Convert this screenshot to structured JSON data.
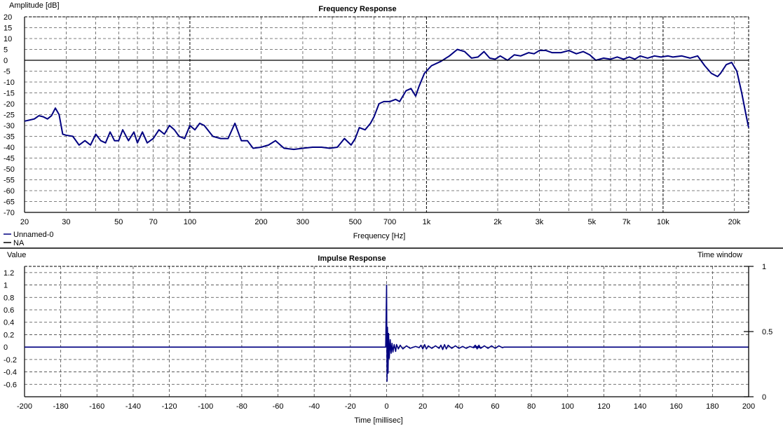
{
  "chart_data": [
    {
      "type": "line",
      "title": "Frequency Response",
      "xlabel": "Frequency [Hz]",
      "ylabel": "Amplitude [dB]",
      "xscale": "log",
      "xlim": [
        20,
        23000
      ],
      "ylim": [
        -70,
        20
      ],
      "grid": true,
      "x_ticks": [
        20,
        30,
        50,
        70,
        100,
        200,
        300,
        500,
        700,
        1000,
        2000,
        3000,
        5000,
        7000,
        10000,
        20000
      ],
      "x_tick_labels": [
        "20",
        "30",
        "50",
        "70",
        "100",
        "200",
        "300",
        "500",
        "700",
        "1k",
        "2k",
        "3k",
        "5k",
        "7k",
        "10k",
        "20k"
      ],
      "y_ticks": [
        20,
        15,
        10,
        5,
        0,
        -5,
        -10,
        -15,
        -20,
        -25,
        -30,
        -35,
        -40,
        -45,
        -50,
        -55,
        -60,
        -65,
        -70
      ],
      "legend": {
        "placement": "bottom-left",
        "entries": [
          {
            "label": "Unnamed-0",
            "color": "#000080"
          },
          {
            "label": "NA",
            "color": "#000000"
          }
        ]
      },
      "series": [
        {
          "name": "Unnamed-0",
          "color": "#000080",
          "points": [
            [
              20,
              -28
            ],
            [
              21,
              -27.5
            ],
            [
              22,
              -27
            ],
            [
              23,
              -25.5
            ],
            [
              24,
              -26
            ],
            [
              25,
              -27
            ],
            [
              26,
              -25.5
            ],
            [
              27,
              -22
            ],
            [
              28,
              -25
            ],
            [
              29,
              -34
            ],
            [
              30,
              -34.5
            ],
            [
              32,
              -35
            ],
            [
              34,
              -39
            ],
            [
              36,
              -37
            ],
            [
              38,
              -39
            ],
            [
              40,
              -34
            ],
            [
              42,
              -37
            ],
            [
              44,
              -38
            ],
            [
              46,
              -33
            ],
            [
              48,
              -37
            ],
            [
              50,
              -37
            ],
            [
              52,
              -32
            ],
            [
              55,
              -37
            ],
            [
              58,
              -33
            ],
            [
              60,
              -38
            ],
            [
              63,
              -33
            ],
            [
              66,
              -38
            ],
            [
              70,
              -36
            ],
            [
              74,
              -32
            ],
            [
              78,
              -34
            ],
            [
              82,
              -30
            ],
            [
              86,
              -32
            ],
            [
              90,
              -35
            ],
            [
              95,
              -36
            ],
            [
              100,
              -30
            ],
            [
              105,
              -32
            ],
            [
              110,
              -29
            ],
            [
              115,
              -30
            ],
            [
              125,
              -35
            ],
            [
              135,
              -36
            ],
            [
              145,
              -36
            ],
            [
              155,
              -29
            ],
            [
              165,
              -37
            ],
            [
              175,
              -37
            ],
            [
              185,
              -40.5
            ],
            [
              200,
              -40
            ],
            [
              215,
              -39
            ],
            [
              230,
              -37
            ],
            [
              250,
              -40.5
            ],
            [
              275,
              -41
            ],
            [
              300,
              -40.5
            ],
            [
              330,
              -40
            ],
            [
              360,
              -40
            ],
            [
              390,
              -40.5
            ],
            [
              420,
              -40
            ],
            [
              450,
              -36
            ],
            [
              480,
              -39
            ],
            [
              500,
              -36
            ],
            [
              520,
              -31
            ],
            [
              550,
              -32
            ],
            [
              580,
              -29
            ],
            [
              600,
              -26
            ],
            [
              630,
              -20
            ],
            [
              660,
              -19
            ],
            [
              700,
              -19
            ],
            [
              740,
              -18
            ],
            [
              770,
              -19
            ],
            [
              820,
              -14
            ],
            [
              860,
              -13
            ],
            [
              900,
              -16.5
            ],
            [
              930,
              -12
            ],
            [
              980,
              -6
            ],
            [
              1050,
              -2.5
            ],
            [
              1150,
              -0.5
            ],
            [
              1250,
              2
            ],
            [
              1350,
              5
            ],
            [
              1450,
              4
            ],
            [
              1550,
              1
            ],
            [
              1650,
              1.5
            ],
            [
              1750,
              4
            ],
            [
              1850,
              1
            ],
            [
              1950,
              0.5
            ],
            [
              2050,
              2
            ],
            [
              2200,
              0
            ],
            [
              2350,
              2.5
            ],
            [
              2500,
              2
            ],
            [
              2700,
              3.5
            ],
            [
              2850,
              3
            ],
            [
              3000,
              4.5
            ],
            [
              3200,
              4.5
            ],
            [
              3400,
              3.5
            ],
            [
              3700,
              3.5
            ],
            [
              4000,
              4.5
            ],
            [
              4300,
              3
            ],
            [
              4600,
              4
            ],
            [
              4900,
              2.5
            ],
            [
              5200,
              0
            ],
            [
              5600,
              1
            ],
            [
              6000,
              0.5
            ],
            [
              6400,
              1.5
            ],
            [
              6800,
              0.5
            ],
            [
              7200,
              1.5
            ],
            [
              7600,
              0.5
            ],
            [
              8000,
              2
            ],
            [
              8600,
              1
            ],
            [
              9200,
              2
            ],
            [
              9800,
              1.5
            ],
            [
              10500,
              2
            ],
            [
              11000,
              1.5
            ],
            [
              12000,
              2
            ],
            [
              13000,
              1
            ],
            [
              14000,
              2
            ],
            [
              15000,
              -2.5
            ],
            [
              16000,
              -6
            ],
            [
              17000,
              -7.5
            ],
            [
              17500,
              -6
            ],
            [
              18500,
              -2
            ],
            [
              19500,
              -1
            ],
            [
              20500,
              -5
            ],
            [
              21500,
              -15
            ],
            [
              22500,
              -26
            ],
            [
              23000,
              -31
            ]
          ]
        },
        {
          "name": "NA",
          "color": "#000000",
          "points": [
            [
              20,
              0
            ],
            [
              23000,
              0
            ]
          ]
        }
      ]
    },
    {
      "type": "line",
      "title": "Impulse Response",
      "xlabel": "Time [millisec]",
      "ylabel": "Value",
      "y2label": "Time window",
      "xlim": [
        -200,
        200
      ],
      "ylim": [
        -0.8,
        1.3
      ],
      "y2lim": [
        0,
        1
      ],
      "grid": true,
      "x_ticks": [
        -200,
        -180,
        -160,
        -140,
        -120,
        -100,
        -80,
        -60,
        -40,
        -20,
        0,
        20,
        40,
        60,
        80,
        100,
        120,
        140,
        160,
        180,
        200
      ],
      "y_ticks": [
        1.2,
        1,
        0.8,
        0.6,
        0.4,
        0.2,
        0,
        -0.2,
        -0.4,
        -0.6
      ],
      "y_tick_labels": [
        "1.2",
        "1",
        "0.8",
        "0.6",
        "0.4",
        "0.2",
        "0",
        "-0.2",
        "-0.4",
        "-0.6"
      ],
      "y2_ticks": [
        1,
        0.5,
        0
      ],
      "y2_tick_labels": [
        "1",
        "0.5",
        "0"
      ],
      "series": [
        {
          "name": "Unnamed-0",
          "color": "#000080",
          "points": [
            [
              -200,
              0
            ],
            [
              -0.5,
              0
            ],
            [
              0,
              1.0
            ],
            [
              0.25,
              -0.55
            ],
            [
              0.5,
              0.32
            ],
            [
              0.8,
              -0.42
            ],
            [
              1.1,
              0.22
            ],
            [
              1.5,
              -0.18
            ],
            [
              2,
              0.12
            ],
            [
              2.5,
              -0.1
            ],
            [
              3,
              0.06
            ],
            [
              3.5,
              -0.08
            ],
            [
              4.2,
              0.04
            ],
            [
              5,
              -0.07
            ],
            [
              5.5,
              0.04
            ],
            [
              6.5,
              -0.03
            ],
            [
              7.5,
              0.03
            ],
            [
              9,
              -0.03
            ],
            [
              11,
              0.02
            ],
            [
              13,
              -0.02
            ],
            [
              16,
              0.01
            ],
            [
              18,
              -0.01
            ],
            [
              19,
              0.03
            ],
            [
              20,
              -0.03
            ],
            [
              21,
              0.04
            ],
            [
              22,
              -0.03
            ],
            [
              23,
              0.02
            ],
            [
              25,
              -0.02
            ],
            [
              27,
              0.02
            ],
            [
              29,
              -0.02
            ],
            [
              30,
              0.03
            ],
            [
              31,
              -0.04
            ],
            [
              32,
              0.04
            ],
            [
              33,
              -0.03
            ],
            [
              34,
              0.03
            ],
            [
              36,
              -0.02
            ],
            [
              38,
              0.02
            ],
            [
              40,
              -0.02
            ],
            [
              42,
              0.01
            ],
            [
              44,
              -0.02
            ],
            [
              46,
              0.01
            ],
            [
              48,
              -0.01
            ],
            [
              50,
              0.01
            ],
            [
              52,
              -0.01
            ],
            [
              48,
              0
            ],
            [
              49,
              0.03
            ],
            [
              50,
              -0.03
            ],
            [
              51,
              0.03
            ],
            [
              52,
              -0.02
            ],
            [
              54,
              0.02
            ],
            [
              56,
              -0.02
            ],
            [
              58,
              0.02
            ],
            [
              60,
              -0.02
            ],
            [
              62,
              0.02
            ],
            [
              64,
              -0.01
            ],
            [
              65,
              0
            ],
            [
              200,
              0
            ]
          ]
        },
        {
          "name": "Time window",
          "color": "#000000",
          "points": [
            [
              200,
              1
            ],
            [
              200,
              0
            ]
          ]
        }
      ]
    }
  ]
}
